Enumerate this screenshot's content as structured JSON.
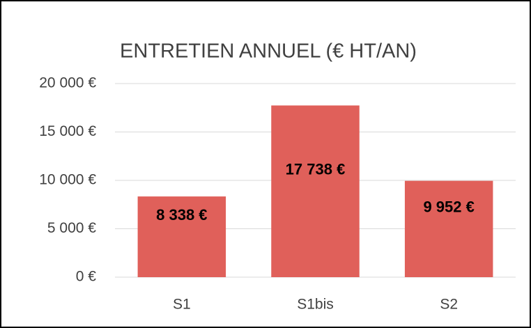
{
  "chart_data": {
    "type": "bar",
    "title": "ENTRETIEN ANNUEL (€ HT/AN)",
    "categories": [
      "S1",
      "S1bis",
      "S2"
    ],
    "values": [
      8338,
      17738,
      9952
    ],
    "value_labels": [
      "8 338 €",
      "17 738 €",
      "9 952 €"
    ],
    "color": "#e0605a",
    "ylim": [
      0,
      20000
    ],
    "yticks": [
      {
        "value": 0,
        "label": "0 €"
      },
      {
        "value": 5000,
        "label": "5 000 €"
      },
      {
        "value": 10000,
        "label": "10 000 €"
      },
      {
        "value": 15000,
        "label": "15 000 €"
      },
      {
        "value": 20000,
        "label": "20 000 €"
      }
    ],
    "grid": true
  }
}
